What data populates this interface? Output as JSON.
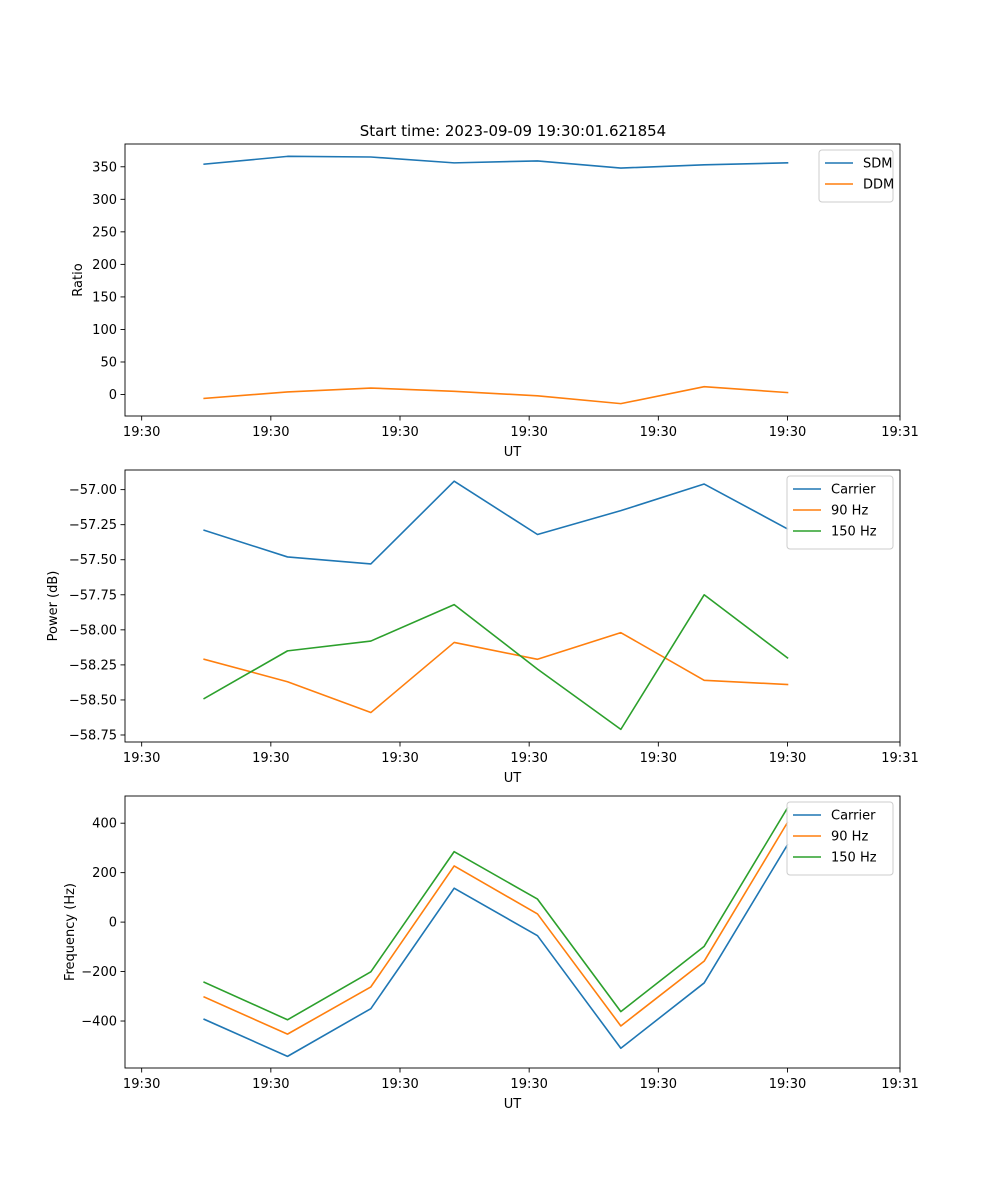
{
  "figure_title": "Start time: 2023-09-09 19:30:01.621854",
  "colors": {
    "blue": "#1f77b4",
    "orange": "#ff7f0e",
    "green": "#2ca02c"
  },
  "chart_data": [
    {
      "type": "line",
      "title": "Start time: 2023-09-09 19:30:01.621854",
      "xlabel": "UT",
      "ylabel": "Ratio",
      "xlim": [
        0,
        9.3
      ],
      "x": [
        0.95,
        1.95,
        2.95,
        3.95,
        4.95,
        5.95,
        6.95,
        7.95
      ],
      "x_tick_values": [
        0.2,
        1.75,
        3.3,
        4.85,
        6.4,
        7.95,
        9.3
      ],
      "x_tick_labels": [
        "19:30",
        "19:30",
        "19:30",
        "19:30",
        "19:30",
        "19:30",
        "19:31"
      ],
      "ylim": [
        -33,
        385
      ],
      "y_ticks": [
        0,
        50,
        100,
        150,
        200,
        250,
        300,
        350
      ],
      "y_tick_labels": [
        "0",
        "50",
        "100",
        "150",
        "200",
        "250",
        "300",
        "350"
      ],
      "legend_position": "top-right",
      "series": [
        {
          "name": "SDM",
          "color": "#1f77b4",
          "values": [
            354,
            366,
            365,
            356,
            359,
            348,
            353,
            356
          ]
        },
        {
          "name": "DDM",
          "color": "#ff7f0e",
          "values": [
            -6,
            4,
            10,
            5,
            -2,
            -14,
            12,
            3
          ]
        }
      ]
    },
    {
      "type": "line",
      "xlabel": "UT",
      "ylabel": "Power (dB)",
      "xlim": [
        0,
        9.3
      ],
      "x": [
        0.95,
        1.95,
        2.95,
        3.95,
        4.95,
        5.95,
        6.95,
        7.95
      ],
      "x_tick_values": [
        0.2,
        1.75,
        3.3,
        4.85,
        6.4,
        7.95,
        9.3
      ],
      "x_tick_labels": [
        "19:30",
        "19:30",
        "19:30",
        "19:30",
        "19:30",
        "19:30",
        "19:31"
      ],
      "ylim": [
        -58.8,
        -56.86
      ],
      "y_ticks": [
        -58.75,
        -58.5,
        -58.25,
        -58.0,
        -57.75,
        -57.5,
        -57.25,
        -57.0
      ],
      "y_tick_labels": [
        "−58.75",
        "−58.50",
        "−58.25",
        "−58.00",
        "−57.75",
        "−57.50",
        "−57.25",
        "−57.00"
      ],
      "legend_position": "top-right",
      "series": [
        {
          "name": "Carrier",
          "color": "#1f77b4",
          "values": [
            -57.29,
            -57.48,
            -57.53,
            -56.94,
            -57.32,
            -57.15,
            -56.96,
            -57.28
          ]
        },
        {
          "name": "90 Hz",
          "color": "#ff7f0e",
          "values": [
            -58.21,
            -58.37,
            -58.59,
            -58.09,
            -58.21,
            -58.02,
            -58.36,
            -58.39
          ]
        },
        {
          "name": "150 Hz",
          "color": "#2ca02c",
          "values": [
            -58.49,
            -58.15,
            -58.08,
            -57.82,
            -58.28,
            -58.71,
            -57.75,
            -58.2
          ]
        }
      ]
    },
    {
      "type": "line",
      "xlabel": "UT",
      "ylabel": "Frequency (Hz)",
      "xlim": [
        0,
        9.3
      ],
      "x": [
        0.95,
        1.95,
        2.95,
        3.95,
        4.95,
        5.95,
        6.95,
        7.95
      ],
      "x_tick_values": [
        0.2,
        1.75,
        3.3,
        4.85,
        6.4,
        7.95,
        9.3
      ],
      "x_tick_labels": [
        "19:30",
        "19:30",
        "19:30",
        "19:30",
        "19:30",
        "19:30",
        "19:31"
      ],
      "ylim": [
        -590,
        510
      ],
      "y_ticks": [
        -400,
        -200,
        0,
        200,
        400
      ],
      "y_tick_labels": [
        "−400",
        "−200",
        "0",
        "200",
        "400"
      ],
      "legend_position": "top-right",
      "series": [
        {
          "name": "Carrier",
          "color": "#1f77b4",
          "values": [
            -393,
            -543,
            -350,
            137,
            -55,
            -510,
            -246,
            313
          ]
        },
        {
          "name": "90 Hz",
          "color": "#ff7f0e",
          "values": [
            -303,
            -453,
            -262,
            227,
            33,
            -420,
            -158,
            403
          ]
        },
        {
          "name": "150 Hz",
          "color": "#2ca02c",
          "values": [
            -243,
            -395,
            -201,
            285,
            93,
            -362,
            -98,
            462
          ]
        }
      ]
    }
  ]
}
